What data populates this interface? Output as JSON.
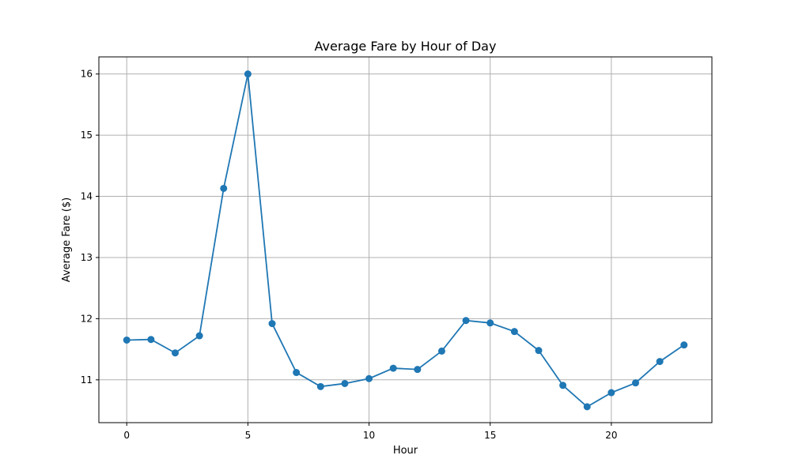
{
  "chart_data": {
    "type": "line",
    "title": "Average Fare by Hour of Day",
    "xlabel": "Hour",
    "ylabel": "Average Fare ($)",
    "x": [
      0,
      1,
      2,
      3,
      4,
      5,
      6,
      7,
      8,
      9,
      10,
      11,
      12,
      13,
      14,
      15,
      16,
      17,
      18,
      19,
      20,
      21,
      22,
      23
    ],
    "series": [
      {
        "values": [
          11.65,
          11.66,
          11.44,
          11.72,
          14.13,
          16.0,
          11.92,
          11.12,
          10.89,
          10.94,
          11.02,
          11.19,
          11.17,
          11.47,
          11.97,
          11.93,
          11.79,
          11.48,
          10.91,
          10.56,
          10.79,
          10.95,
          11.3,
          11.57
        ],
        "color": "#1f77b4"
      }
    ],
    "xlim": [
      -1.15,
      24.15
    ],
    "ylim": [
      10.3,
      16.28
    ],
    "xticks": [
      0,
      5,
      10,
      15,
      20
    ],
    "yticks": [
      11,
      12,
      13,
      14,
      15,
      16
    ],
    "grid": true,
    "legend": "none"
  }
}
